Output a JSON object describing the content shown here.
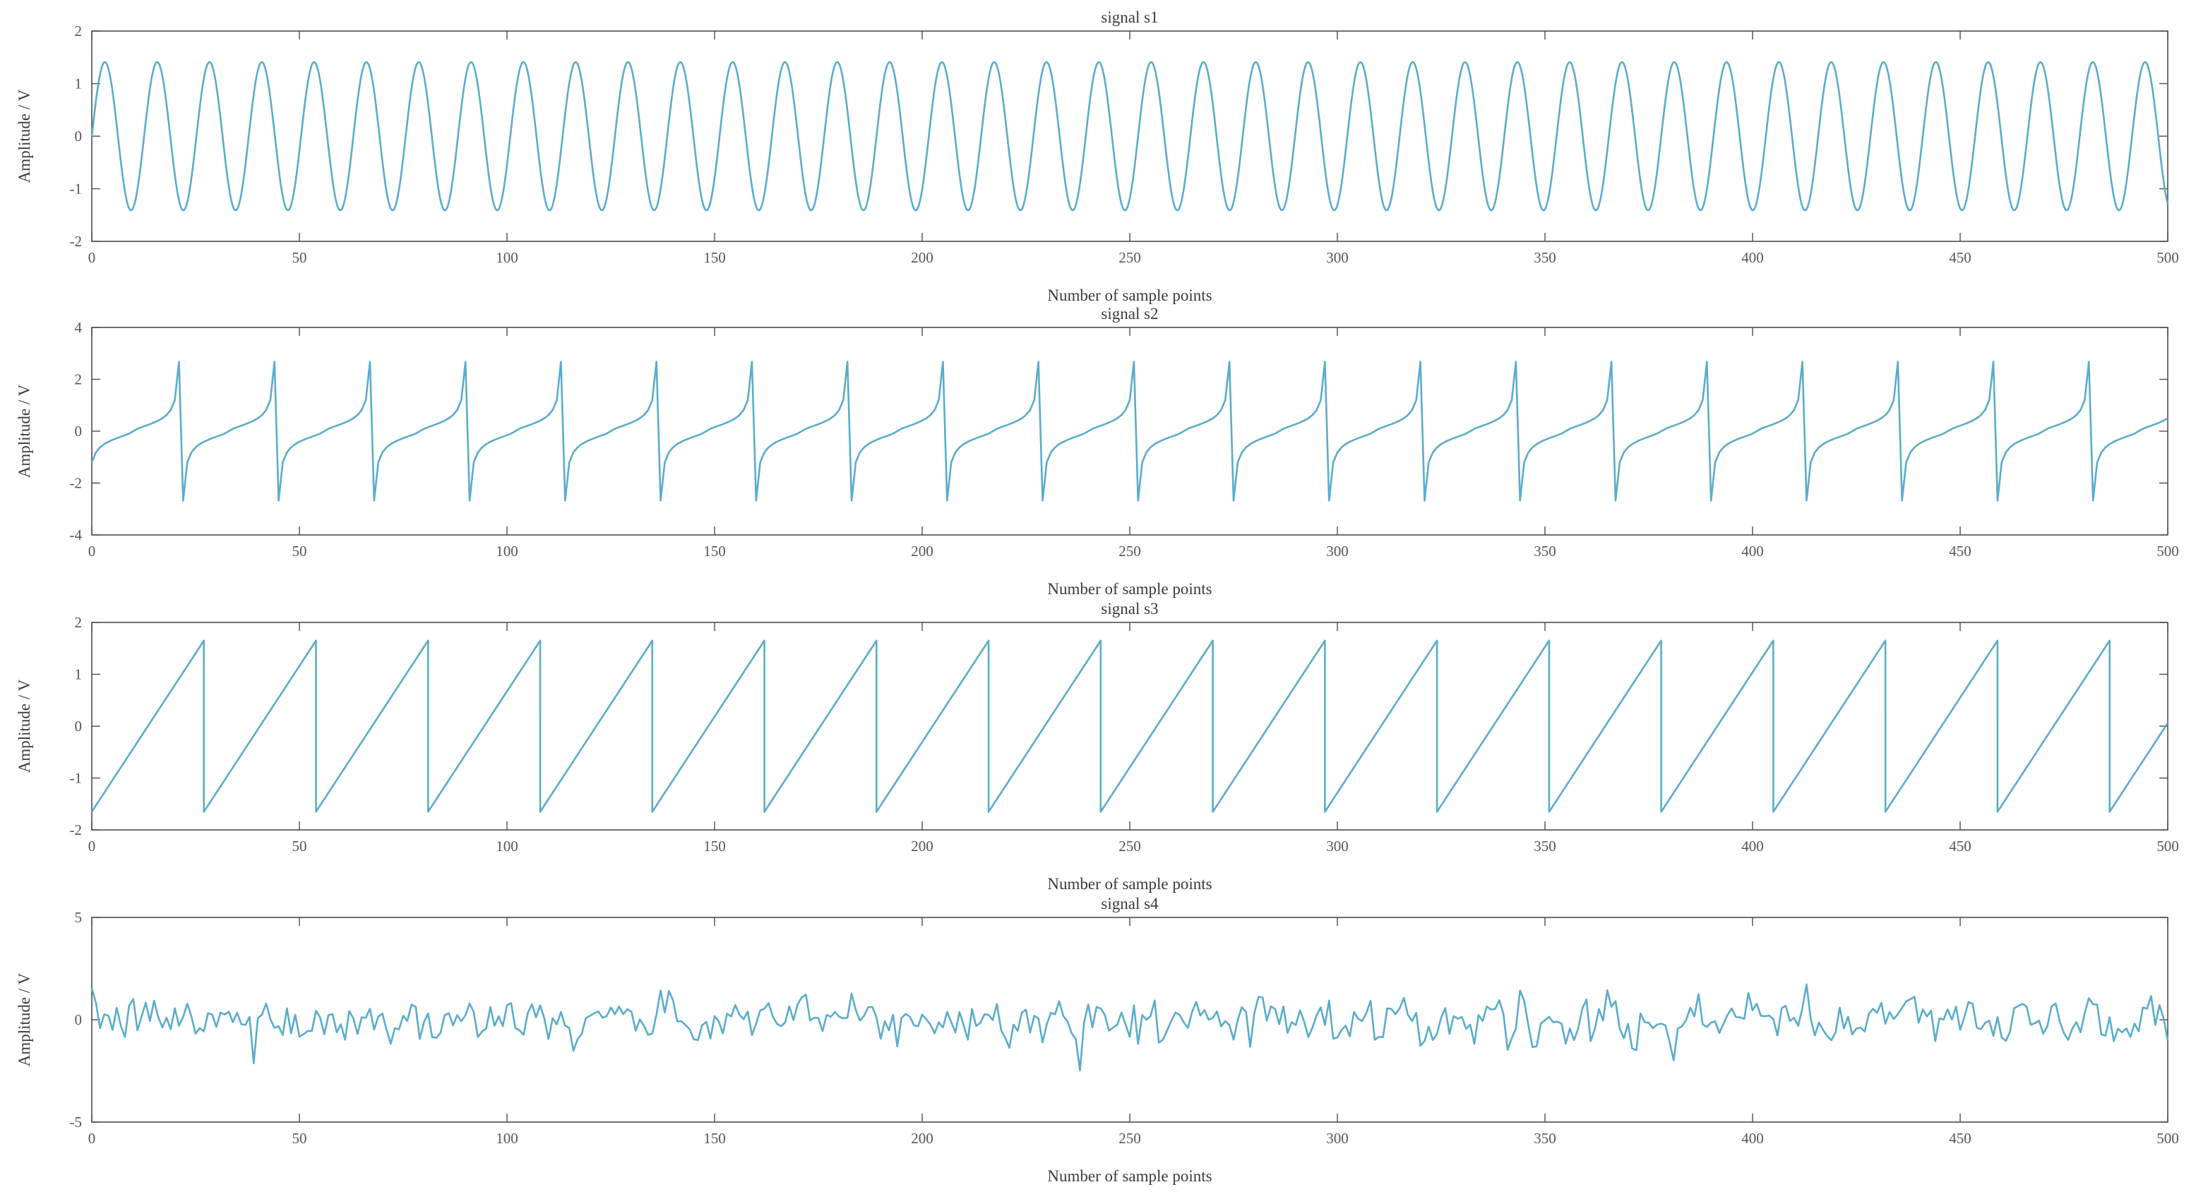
{
  "colors": {
    "line": "#5aaccb",
    "axis": "#4d4d4d",
    "tick_text": "#555555",
    "background": "#ffffff"
  },
  "chart_data": [
    {
      "type": "line",
      "title": "signal s1",
      "xlabel": "Number of sample points",
      "ylabel": "Amplitude / V",
      "xlim": [
        0,
        500
      ],
      "ylim": [
        -2,
        2
      ],
      "xticks": [
        0,
        50,
        100,
        150,
        200,
        250,
        300,
        350,
        400,
        450,
        500
      ],
      "yticks": [
        -2,
        -1,
        0,
        1,
        2
      ],
      "grid": false,
      "waveform": "sine",
      "amplitude": 1.41,
      "period": 12.6,
      "series": [
        {
          "x_range": [
            0,
            500
          ],
          "samples": 500
        }
      ]
    },
    {
      "type": "line",
      "title": "signal s2",
      "xlabel": "Number of sample points",
      "ylabel": "Amplitude / V",
      "xlim": [
        0,
        500
      ],
      "ylim": [
        -4,
        4
      ],
      "xticks": [
        0,
        50,
        100,
        150,
        200,
        250,
        300,
        350,
        400,
        450,
        500
      ],
      "yticks": [
        -4,
        -2,
        0,
        2,
        4
      ],
      "grid": false,
      "waveform": "tangent-like sawtooth",
      "amplitude": 2.7,
      "period": 23,
      "series": [
        {
          "x_range": [
            0,
            500
          ],
          "samples": 500
        }
      ]
    },
    {
      "type": "line",
      "title": "signal s3",
      "xlabel": "Number of sample points",
      "ylabel": "Amplitude / V",
      "xlim": [
        0,
        500
      ],
      "ylim": [
        -2,
        2
      ],
      "xticks": [
        0,
        50,
        100,
        150,
        200,
        250,
        300,
        350,
        400,
        450,
        500
      ],
      "yticks": [
        -2,
        -1,
        0,
        1,
        2
      ],
      "grid": false,
      "waveform": "sawtooth",
      "amplitude": 1.65,
      "period": 27,
      "series": [
        {
          "x_range": [
            0,
            500
          ],
          "samples": 500
        }
      ]
    },
    {
      "type": "line",
      "title": "signal s4",
      "xlabel": "Number of sample points",
      "ylabel": "Amplitude / V",
      "xlim": [
        0,
        500
      ],
      "ylim": [
        -5,
        5
      ],
      "xticks": [
        0,
        50,
        100,
        150,
        200,
        250,
        300,
        350,
        400,
        450,
        500
      ],
      "yticks": [
        -5,
        0,
        5
      ],
      "grid": false,
      "waveform": "random noise",
      "series": [
        {
          "x_range": [
            0,
            500
          ],
          "samples": 500
        }
      ]
    }
  ]
}
